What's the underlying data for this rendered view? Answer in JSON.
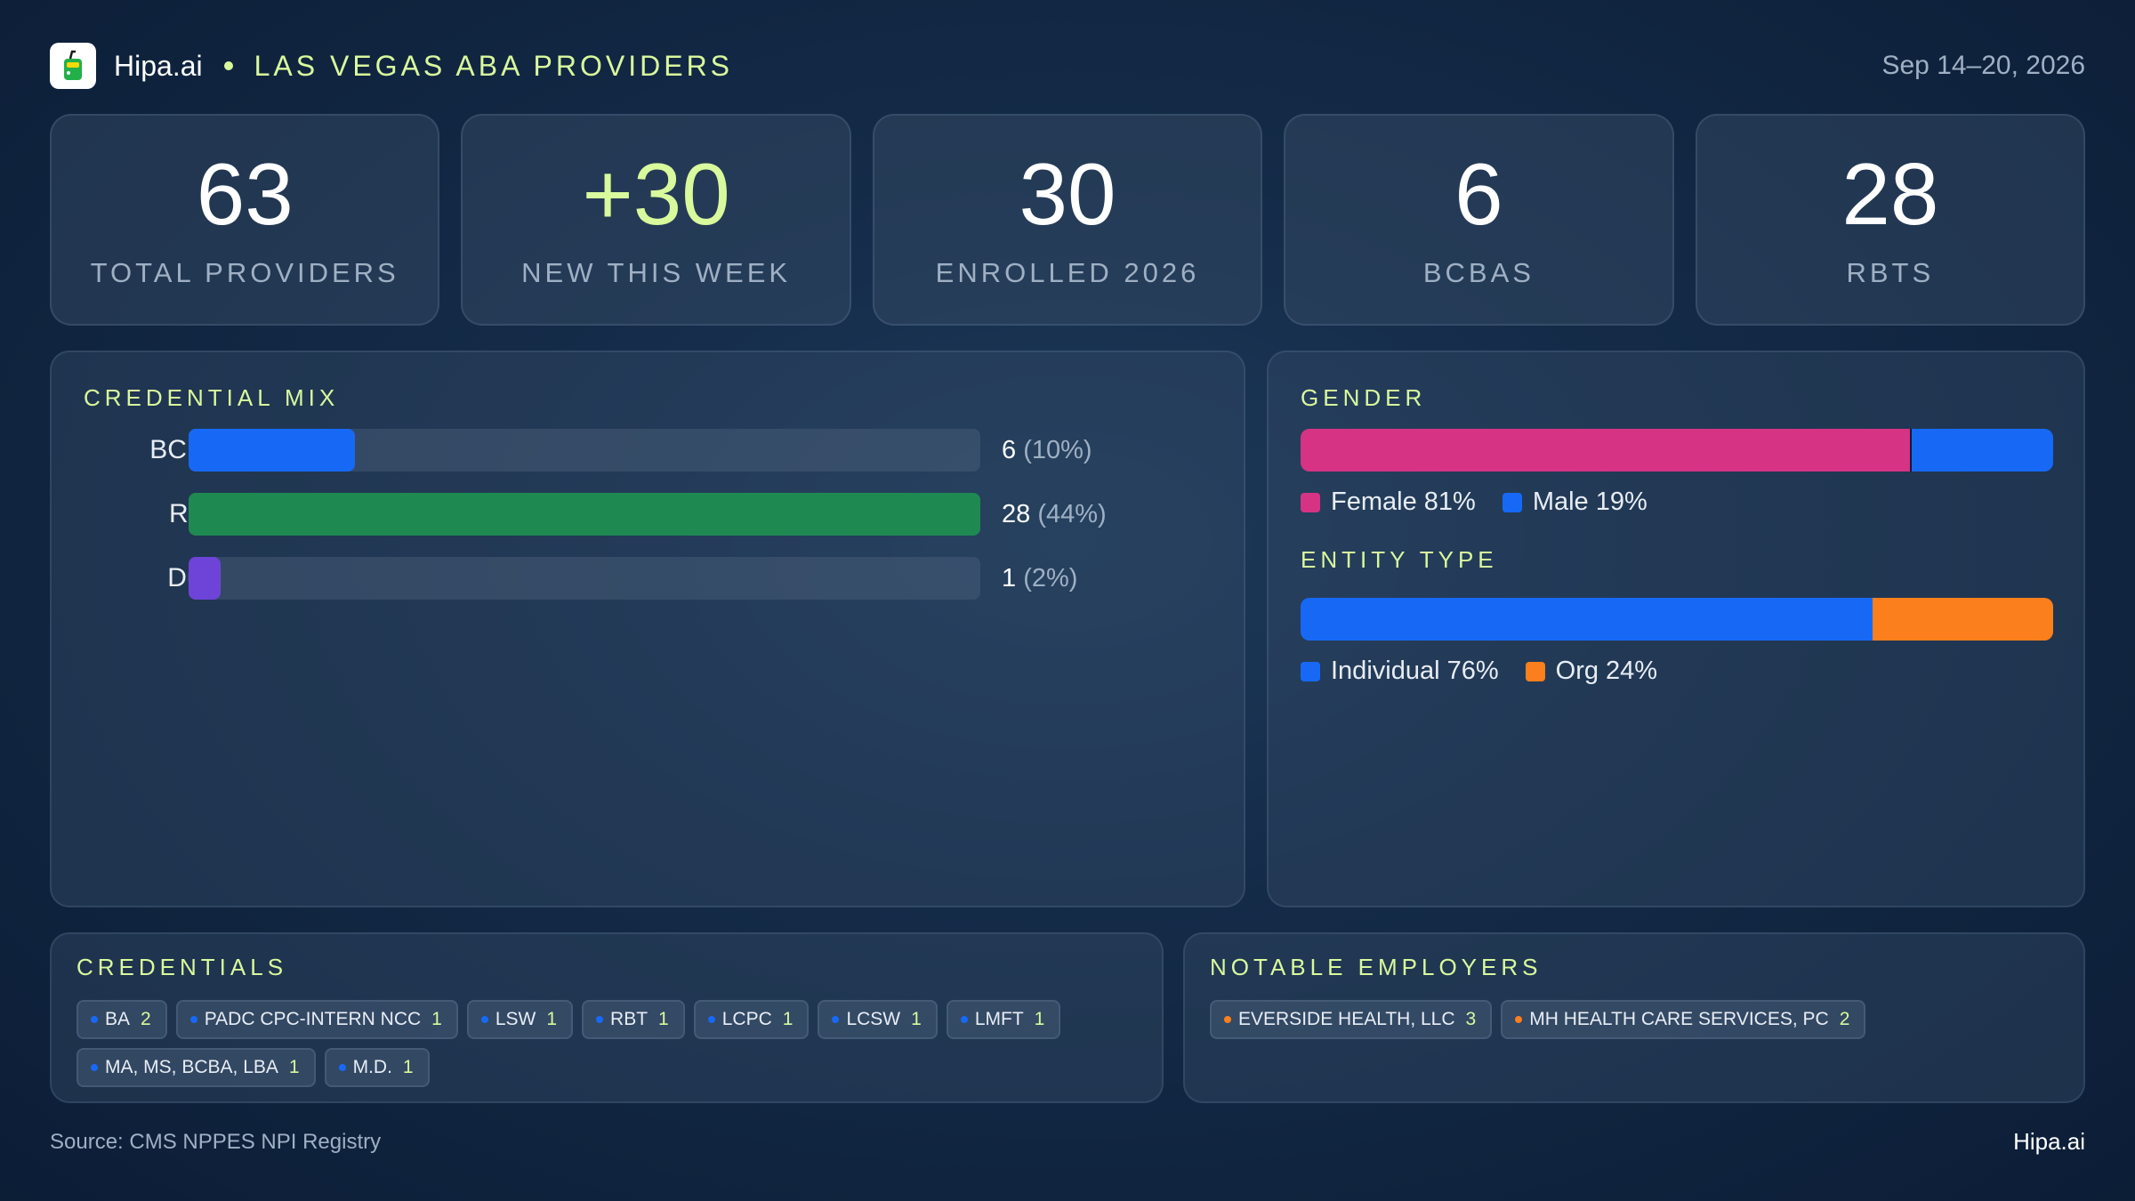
{
  "header": {
    "brand": "Hipa.ai",
    "title": "LAS VEGAS ABA PROVIDERS",
    "date_range": "Sep 14–20, 2026"
  },
  "kpis": [
    {
      "value": "63",
      "label": "TOTAL PROVIDERS",
      "accent": false
    },
    {
      "value": "+30",
      "label": "NEW THIS WEEK",
      "accent": true
    },
    {
      "value": "30",
      "label": "ENROLLED 2026",
      "accent": false
    },
    {
      "value": "6",
      "label": "BCBAS",
      "accent": false
    },
    {
      "value": "28",
      "label": "RBTS",
      "accent": false
    }
  ],
  "credential_mix": {
    "title": "CREDENTIAL MIX",
    "rows": [
      {
        "label": "BCBA",
        "count": "6",
        "pct": "(10%)",
        "fraction": 0.21,
        "color": "#1769f5"
      },
      {
        "label": "RBT",
        "count": "28",
        "pct": "(44%)",
        "fraction": 1.0,
        "color": "#1e8a52"
      },
      {
        "label": "Dual",
        "count": "1",
        "pct": "(2%)",
        "fraction": 0.04,
        "color": "#6e44d8"
      }
    ]
  },
  "gender": {
    "title": "GENDER",
    "segments": [
      {
        "label": "Female 81%",
        "fraction": 0.81,
        "color": "#d63384"
      },
      {
        "label": "Male 19%",
        "fraction": 0.19,
        "color": "#1769f5"
      }
    ]
  },
  "entity_type": {
    "title": "ENTITY TYPE",
    "segments": [
      {
        "label": "Individual 76%",
        "fraction": 0.76,
        "color": "#1769f5"
      },
      {
        "label": "Org 24%",
        "fraction": 0.24,
        "color": "#fb7f1c"
      }
    ]
  },
  "credentials": {
    "title": "CREDENTIALS",
    "dot_color": "#1769f5",
    "items": [
      {
        "name": "BA",
        "count": "2"
      },
      {
        "name": "PADC CPC-INTERN NCC",
        "count": "1"
      },
      {
        "name": "LSW",
        "count": "1"
      },
      {
        "name": "RBT",
        "count": "1"
      },
      {
        "name": "LCPC",
        "count": "1"
      },
      {
        "name": "LCSW",
        "count": "1"
      },
      {
        "name": "LMFT",
        "count": "1"
      },
      {
        "name": "MA, MS, BCBA, LBA",
        "count": "1"
      },
      {
        "name": "M.D.",
        "count": "1"
      }
    ]
  },
  "employers": {
    "title": "NOTABLE EMPLOYERS",
    "dot_color": "#fb7f1c",
    "items": [
      {
        "name": "EVERSIDE HEALTH, LLC",
        "count": "3"
      },
      {
        "name": "MH HEALTH CARE SERVICES, PC",
        "count": "2"
      }
    ]
  },
  "footer": {
    "source": "Source: CMS NPPES NPI Registry",
    "brand": "Hipa.ai"
  }
}
